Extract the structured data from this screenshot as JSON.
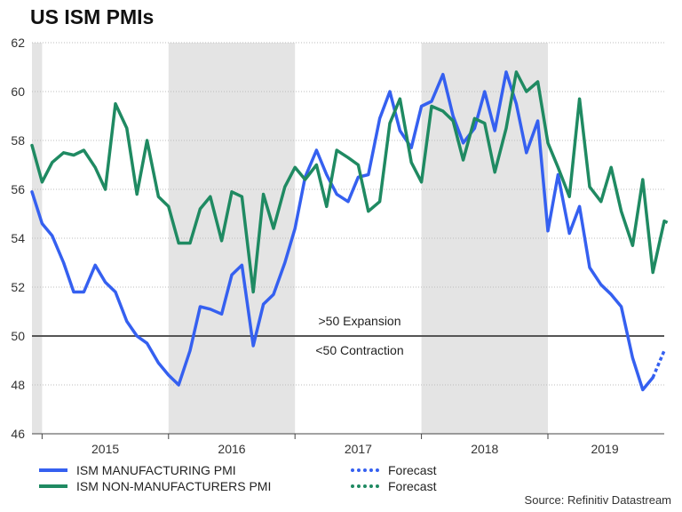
{
  "chart_data": {
    "type": "line",
    "title": "US ISM PMIs",
    "xlabel": "",
    "ylabel": "",
    "ylim": [
      46,
      62
    ],
    "yticks": [
      46,
      48,
      50,
      52,
      54,
      56,
      58,
      60,
      62
    ],
    "x_start": 2014.92,
    "x_end": 2019.92,
    "year_labels": [
      {
        "label": "2015",
        "x": 2015.5
      },
      {
        "label": "2016",
        "x": 2016.5
      },
      {
        "label": "2017",
        "x": 2017.5
      },
      {
        "label": "2018",
        "x": 2018.5
      },
      {
        "label": "2019",
        "x": 2019.45
      }
    ],
    "shaded_years": [
      [
        2014.92,
        2015.0
      ],
      [
        2016.0,
        2017.0
      ],
      [
        2018.0,
        2019.0
      ]
    ],
    "reference_line": {
      "value": 50,
      "above_label": ">50 Expansion",
      "below_label": "<50 Contraction"
    },
    "series": [
      {
        "name": "ISM MANUFACTURING PMI",
        "color": "#3560f0",
        "values": [
          [
            2014.92,
            55.9
          ],
          [
            2015.0,
            54.6
          ],
          [
            2015.08,
            54.1
          ],
          [
            2015.17,
            53.0
          ],
          [
            2015.25,
            51.8
          ],
          [
            2015.33,
            51.8
          ],
          [
            2015.42,
            52.9
          ],
          [
            2015.5,
            52.2
          ],
          [
            2015.58,
            51.8
          ],
          [
            2015.67,
            50.6
          ],
          [
            2015.75,
            50.0
          ],
          [
            2015.83,
            49.7
          ],
          [
            2015.92,
            48.9
          ],
          [
            2016.0,
            48.4
          ],
          [
            2016.08,
            48.0
          ],
          [
            2016.17,
            49.4
          ],
          [
            2016.25,
            51.2
          ],
          [
            2016.33,
            51.1
          ],
          [
            2016.42,
            50.9
          ],
          [
            2016.5,
            52.5
          ],
          [
            2016.58,
            52.9
          ],
          [
            2016.67,
            49.6
          ],
          [
            2016.75,
            51.3
          ],
          [
            2016.83,
            51.7
          ],
          [
            2016.92,
            53.0
          ],
          [
            2017.0,
            54.4
          ],
          [
            2017.08,
            56.5
          ],
          [
            2017.17,
            57.6
          ],
          [
            2017.25,
            56.6
          ],
          [
            2017.33,
            55.8
          ],
          [
            2017.42,
            55.5
          ],
          [
            2017.5,
            56.5
          ],
          [
            2017.58,
            56.6
          ],
          [
            2017.67,
            58.9
          ],
          [
            2017.75,
            60.0
          ],
          [
            2017.83,
            58.4
          ],
          [
            2017.92,
            57.7
          ],
          [
            2018.0,
            59.4
          ],
          [
            2018.08,
            59.6
          ],
          [
            2018.17,
            60.7
          ],
          [
            2018.25,
            59.0
          ],
          [
            2018.33,
            57.9
          ],
          [
            2018.42,
            58.5
          ],
          [
            2018.5,
            60.0
          ],
          [
            2018.58,
            58.4
          ],
          [
            2018.67,
            60.8
          ],
          [
            2018.75,
            59.5
          ],
          [
            2018.83,
            57.5
          ],
          [
            2018.92,
            58.8
          ],
          [
            2019.0,
            54.3
          ],
          [
            2019.08,
            56.6
          ],
          [
            2019.17,
            54.2
          ],
          [
            2019.25,
            55.3
          ],
          [
            2019.33,
            52.8
          ],
          [
            2019.42,
            52.1
          ],
          [
            2019.5,
            51.7
          ],
          [
            2019.58,
            51.2
          ],
          [
            2019.67,
            49.1
          ],
          [
            2019.75,
            47.8
          ],
          [
            2019.83,
            48.3
          ]
        ]
      },
      {
        "name": "ISM NON-MANUFACTURERS PMI",
        "color": "#1f8a62",
        "values": [
          [
            2014.92,
            57.8
          ],
          [
            2015.0,
            56.3
          ],
          [
            2015.08,
            57.1
          ],
          [
            2015.17,
            57.5
          ],
          [
            2015.25,
            57.4
          ],
          [
            2015.33,
            57.6
          ],
          [
            2015.42,
            56.9
          ],
          [
            2015.5,
            56.0
          ],
          [
            2015.58,
            59.5
          ],
          [
            2015.67,
            58.5
          ],
          [
            2015.75,
            55.8
          ],
          [
            2015.83,
            58.0
          ],
          [
            2015.92,
            55.7
          ],
          [
            2016.0,
            55.3
          ],
          [
            2016.08,
            53.8
          ],
          [
            2016.17,
            53.8
          ],
          [
            2016.25,
            55.2
          ],
          [
            2016.33,
            55.7
          ],
          [
            2016.42,
            53.9
          ],
          [
            2016.5,
            55.9
          ],
          [
            2016.58,
            55.7
          ],
          [
            2016.67,
            51.8
          ],
          [
            2016.75,
            55.8
          ],
          [
            2016.83,
            54.4
          ],
          [
            2016.92,
            56.1
          ],
          [
            2017.0,
            56.9
          ],
          [
            2017.08,
            56.4
          ],
          [
            2017.17,
            57.0
          ],
          [
            2017.25,
            55.3
          ],
          [
            2017.33,
            57.6
          ],
          [
            2017.42,
            57.3
          ],
          [
            2017.5,
            57.0
          ],
          [
            2017.58,
            55.1
          ],
          [
            2017.67,
            55.5
          ],
          [
            2017.75,
            58.7
          ],
          [
            2017.83,
            59.7
          ],
          [
            2017.92,
            57.1
          ],
          [
            2018.0,
            56.3
          ],
          [
            2018.08,
            59.4
          ],
          [
            2018.17,
            59.2
          ],
          [
            2018.25,
            58.8
          ],
          [
            2018.33,
            57.2
          ],
          [
            2018.42,
            58.9
          ],
          [
            2018.5,
            58.7
          ],
          [
            2018.58,
            56.7
          ],
          [
            2018.67,
            58.5
          ],
          [
            2018.75,
            60.8
          ],
          [
            2018.83,
            60.0
          ],
          [
            2018.92,
            60.4
          ],
          [
            2019.0,
            57.9
          ],
          [
            2019.08,
            56.9
          ],
          [
            2019.17,
            55.7
          ],
          [
            2019.25,
            59.7
          ],
          [
            2019.33,
            56.1
          ],
          [
            2019.42,
            55.5
          ],
          [
            2019.5,
            56.9
          ],
          [
            2019.58,
            55.1
          ],
          [
            2019.67,
            53.7
          ],
          [
            2019.75,
            56.4
          ],
          [
            2019.83,
            52.6
          ],
          [
            2019.92,
            54.7
          ]
        ]
      },
      {
        "name": "Forecast",
        "color": "#3560f0",
        "dashed": true,
        "values": [
          [
            2019.83,
            48.3
          ],
          [
            2019.92,
            49.4
          ]
        ]
      },
      {
        "name": "Forecast",
        "color": "#1f8a62",
        "dashed": true,
        "values": [
          [
            2019.92,
            54.7
          ],
          [
            2019.96,
            54.6
          ]
        ]
      }
    ]
  },
  "legend": {
    "manufacturing": "ISM MANUFACTURING PMI",
    "non_manufacturing": "ISM NON-MANUFACTURERS PMI",
    "forecast_manufacturing": "Forecast",
    "forecast_non_manufacturing": "Forecast"
  },
  "colors": {
    "manufacturing": "#3560f0",
    "non_manufacturing": "#1f8a62",
    "shade": "#e4e4e4",
    "grid": "#bdbdbd",
    "reference": "#555555"
  },
  "source": "Source: Refinitiv Datastream"
}
